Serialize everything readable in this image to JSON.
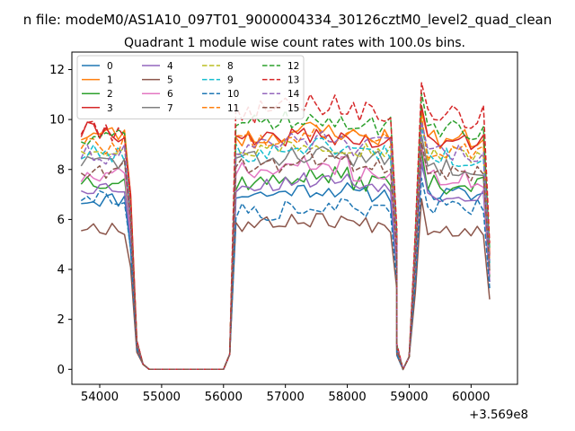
{
  "chart_data": {
    "type": "line",
    "suptitle": "n file: modeM0/AS1A10_097T01_9000004334_30126cztM0_level2_quad_clean",
    "title": "Quadrant 1 module wise count rates with 100.0s bins.",
    "xlabel": "",
    "ylabel": "",
    "x_offset_label": "+3.569e8",
    "xlim": [
      53550,
      60750
    ],
    "ylim": [
      -0.6,
      12.7
    ],
    "x_ticks": [
      54000,
      55000,
      56000,
      57000,
      58000,
      59000,
      60000
    ],
    "x_tick_labels": [
      "54000",
      "55000",
      "56000",
      "57000",
      "58000",
      "59000",
      "60000"
    ],
    "y_ticks": [
      0,
      2,
      4,
      6,
      8,
      10,
      12
    ],
    "y_tick_labels": [
      "0",
      "2",
      "4",
      "6",
      "8",
      "10",
      "12"
    ],
    "grid": false,
    "legend_position": "upper-left",
    "legend_columns": 4,
    "segments": [
      {
        "start": 53700,
        "count": 10
      },
      {
        "start": 54700,
        "count": 14
      },
      {
        "start": 56100,
        "count": 28
      },
      {
        "start": 58800,
        "count": 2
      },
      {
        "start": 59000,
        "count": 14
      }
    ],
    "series": [
      {
        "name": "0",
        "color": "#1f77b4",
        "dash": "solid",
        "levels": [
          6.8,
          7.0,
          6.0,
          7.0
        ],
        "noise": 0.32,
        "seed": 11
      },
      {
        "name": "1",
        "color": "#ff7f0e",
        "dash": "solid",
        "levels": [
          9.4,
          9.3,
          9.3,
          9.2
        ],
        "noise": 0.42,
        "seed": 23
      },
      {
        "name": "2",
        "color": "#2ca02c",
        "dash": "solid",
        "levels": [
          7.6,
          7.5,
          6.6,
          7.4
        ],
        "noise": 0.38,
        "seed": 37
      },
      {
        "name": "3",
        "color": "#d62728",
        "dash": "solid",
        "levels": [
          9.5,
          9.1,
          9.1,
          9.1
        ],
        "noise": 0.4,
        "seed": 41
      },
      {
        "name": "4",
        "color": "#9467bd",
        "dash": "solid",
        "levels": [
          7.3,
          7.4,
          7.1,
          7.0
        ],
        "noise": 0.32,
        "seed": 53
      },
      {
        "name": "5",
        "color": "#8c564b",
        "dash": "solid",
        "levels": [
          5.7,
          5.8,
          5.6,
          5.6
        ],
        "noise": 0.32,
        "seed": 67
      },
      {
        "name": "6",
        "color": "#e377c2",
        "dash": "solid",
        "levels": [
          7.7,
          7.9,
          7.8,
          7.6
        ],
        "noise": 0.4,
        "seed": 71
      },
      {
        "name": "7",
        "color": "#7f7f7f",
        "dash": "solid",
        "levels": [
          8.3,
          8.4,
          8.2,
          8.1
        ],
        "noise": 0.35,
        "seed": 83
      },
      {
        "name": "8",
        "color": "#bcbd22",
        "dash": "dashed",
        "levels": [
          8.9,
          8.8,
          8.7,
          8.6
        ],
        "noise": 0.38,
        "seed": 97
      },
      {
        "name": "9",
        "color": "#17becf",
        "dash": "dashed",
        "levels": [
          8.6,
          8.7,
          8.5,
          8.5
        ],
        "noise": 0.4,
        "seed": 101
      },
      {
        "name": "10",
        "color": "#1f77b4",
        "dash": "dashed",
        "levels": [
          6.9,
          6.3,
          5.9,
          6.5
        ],
        "noise": 0.34,
        "seed": 113
      },
      {
        "name": "11",
        "color": "#ff7f0e",
        "dash": "dashed",
        "levels": [
          9.0,
          9.2,
          8.9,
          8.8
        ],
        "noise": 0.4,
        "seed": 127
      },
      {
        "name": "12",
        "color": "#2ca02c",
        "dash": "dashed",
        "levels": [
          9.3,
          9.8,
          9.7,
          9.6
        ],
        "noise": 0.45,
        "seed": 131
      },
      {
        "name": "13",
        "color": "#d62728",
        "dash": "dashed",
        "levels": [
          9.6,
          10.3,
          10.2,
          10.1
        ],
        "noise": 0.48,
        "seed": 149
      },
      {
        "name": "14",
        "color": "#9467bd",
        "dash": "dashed",
        "levels": [
          8.6,
          8.9,
          9.0,
          8.7
        ],
        "noise": 0.4,
        "seed": 151
      },
      {
        "name": "15",
        "color": "#8c564b",
        "dash": "dashed",
        "levels": [
          8.0,
          8.2,
          8.0,
          7.9
        ],
        "noise": 0.36,
        "seed": 163
      }
    ]
  }
}
